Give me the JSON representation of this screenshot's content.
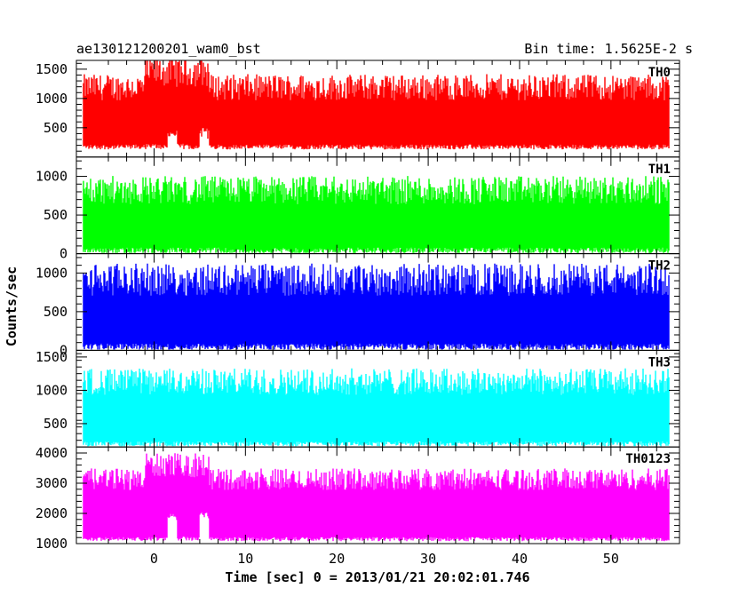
{
  "header": {
    "left_title": "ae130121200201_wam0_bst",
    "right_title": "Bin time: 1.5625E-2 s"
  },
  "chart_data": {
    "type": "line",
    "title": "ae130121200201_wam0_bst",
    "subtitle": "Bin time: 1.5625E-2 s",
    "xlabel": "Time [sec] 0 = 2013/01/21 20:02:01.746",
    "ylabel": "Counts/sec",
    "xlim": [
      -8.5,
      57.5
    ],
    "x_ticks": [
      0,
      10,
      20,
      30,
      40,
      50
    ],
    "x_tick_labels": [
      "0",
      "10",
      "20",
      "30",
      "40",
      "50"
    ],
    "data_x_range": [
      -7.7,
      56.3
    ],
    "bin_time_s": 0.015625,
    "panels": [
      {
        "name": "TH0",
        "color": "#ff0000",
        "ylim": [
          0,
          1650
        ],
        "y_ticks": [
          500,
          1000,
          1500
        ],
        "y_tick_labels": [
          "500",
          "1000",
          "1500"
        ],
        "baseline": 800,
        "noise": 280,
        "min_level": 130,
        "max_level": 1650,
        "features": [
          {
            "x_start": -1,
            "x_end": 6,
            "baseline": 1000,
            "noise": 330
          },
          {
            "x_start": 1.5,
            "x_end": 2.5,
            "floor": 350
          },
          {
            "x_start": 5,
            "x_end": 6,
            "floor": 400
          }
        ]
      },
      {
        "name": "TH1",
        "color": "#00ff00",
        "ylim": [
          0,
          1250
        ],
        "y_ticks": [
          0,
          500,
          1000
        ],
        "y_tick_labels": [
          "0",
          "500",
          "1000"
        ],
        "baseline": 500,
        "noise": 230,
        "min_level": 10,
        "max_level": 1250,
        "features": []
      },
      {
        "name": "TH2",
        "color": "#0000ff",
        "ylim": [
          0,
          1250
        ],
        "y_ticks": [
          0,
          500,
          1000
        ],
        "y_tick_labels": [
          "0",
          "500",
          "1000"
        ],
        "baseline": 550,
        "noise": 260,
        "min_level": 10,
        "max_level": 1250,
        "features": []
      },
      {
        "name": "TH3",
        "color": "#00ffff",
        "ylim": [
          150,
          1600
        ],
        "y_ticks": [
          500,
          1000,
          1500
        ],
        "y_tick_labels": [
          "500",
          "1000",
          "1500"
        ],
        "baseline": 780,
        "noise": 250,
        "min_level": 160,
        "max_level": 1600,
        "features": []
      },
      {
        "name": "TH0123",
        "color": "#ff00ff",
        "ylim": [
          1000,
          4200
        ],
        "y_ticks": [
          1000,
          2000,
          3000,
          4000
        ],
        "y_tick_labels": [
          "1000",
          "2000",
          "3000",
          "4000"
        ],
        "baseline": 2500,
        "noise": 450,
        "min_level": 1080,
        "max_level": 4150,
        "features": [
          {
            "x_start": -1,
            "x_end": 6,
            "baseline": 2900,
            "noise": 500
          },
          {
            "x_start": 1.5,
            "x_end": 2.5,
            "floor": 1850
          },
          {
            "x_start": 5,
            "x_end": 6,
            "floor": 1950
          }
        ]
      }
    ]
  }
}
